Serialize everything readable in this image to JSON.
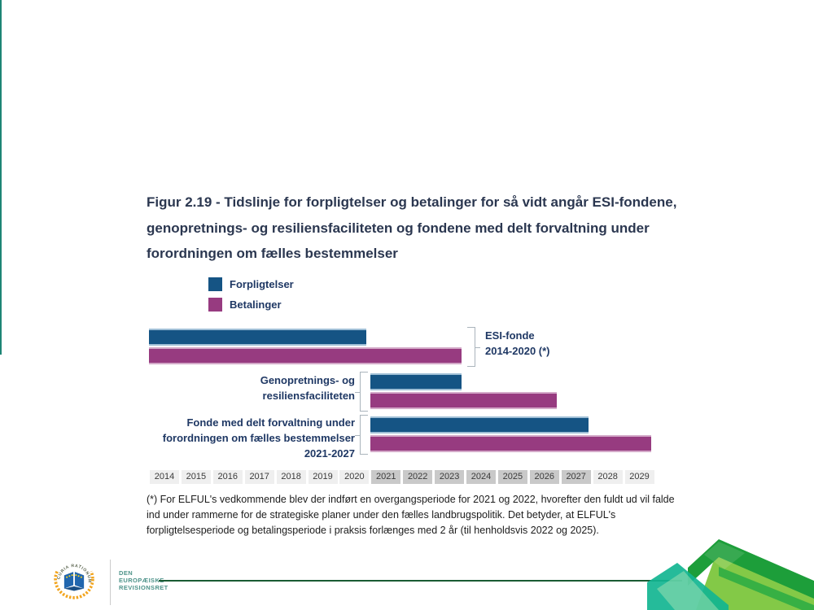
{
  "chart_data": {
    "type": "bar",
    "subtype": "timeline",
    "title": "Figur 2.19 - Tidslinje for forpligtelser og betalinger for så vidt angår ESI-fondene, genopretnings- og resiliensfaciliteten og fondene med delt forvaltning under forordningen om fælles bestemmelser",
    "legend": [
      {
        "name": "Forpligtelser",
        "color": "#155484"
      },
      {
        "name": "Betalinger",
        "color": "#973b80"
      }
    ],
    "x_categories": [
      "2014",
      "2015",
      "2016",
      "2017",
      "2018",
      "2019",
      "2020",
      "2021",
      "2022",
      "2023",
      "2024",
      "2025",
      "2026",
      "2027",
      "2028",
      "2029"
    ],
    "x_highlight_range": {
      "from": 2021,
      "to": 2027
    },
    "groups": [
      {
        "label_lines": [
          "ESI-fonde",
          "2014-2020 (*)"
        ],
        "label_side": "right",
        "bars": [
          {
            "series": "Forpligtelser",
            "start_year": 2014,
            "end_year": 2020
          },
          {
            "series": "Betalinger",
            "start_year": 2014,
            "end_year": 2023
          }
        ]
      },
      {
        "label_lines": [
          "Genopretnings- og",
          "resiliensfaciliteten"
        ],
        "label_side": "left",
        "bars": [
          {
            "series": "Forpligtelser",
            "start_year": 2021,
            "end_year": 2023
          },
          {
            "series": "Betalinger",
            "start_year": 2021,
            "end_year": 2026
          }
        ]
      },
      {
        "label_lines": [
          "Fonde med delt forvaltning under",
          "forordningen om fælles bestemmelser",
          "2021-2027"
        ],
        "label_side": "left",
        "bars": [
          {
            "series": "Forpligtelser",
            "start_year": 2021,
            "end_year": 2027
          },
          {
            "series": "Betalinger",
            "start_year": 2021,
            "end_year": 2029
          }
        ]
      }
    ],
    "footnote": "(*) For ELFUL's vedkommende blev der indført en overgangsperiode for 2021 og 2022, hvorefter den fuldt ud vil falde ind under rammerne for de strategiske planer under den fælles landbrugspolitik. Det betyder, at ELFUL's forpligtelsesperiode og betalingsperiode i praksis forlænges med 2 år (til henholdsvis 2022 og 2025).",
    "colors": {
      "forpligtelser": "#155484",
      "forpligtelser_edge": "#9fbfd6",
      "betalinger": "#973b80",
      "betalinger_edge": "#d3a9c8",
      "year_box": "#efefef",
      "year_box_highlight": "#c9c9c9",
      "accent_teal": "#1d8575",
      "footer_rule_green": "#1a5b33"
    }
  },
  "footer": {
    "emblem_arc_text": "CURIA RATIONUM",
    "org_name_lines": [
      "DEN",
      "EUROPÆISKE",
      "REVISIONSRET"
    ]
  }
}
